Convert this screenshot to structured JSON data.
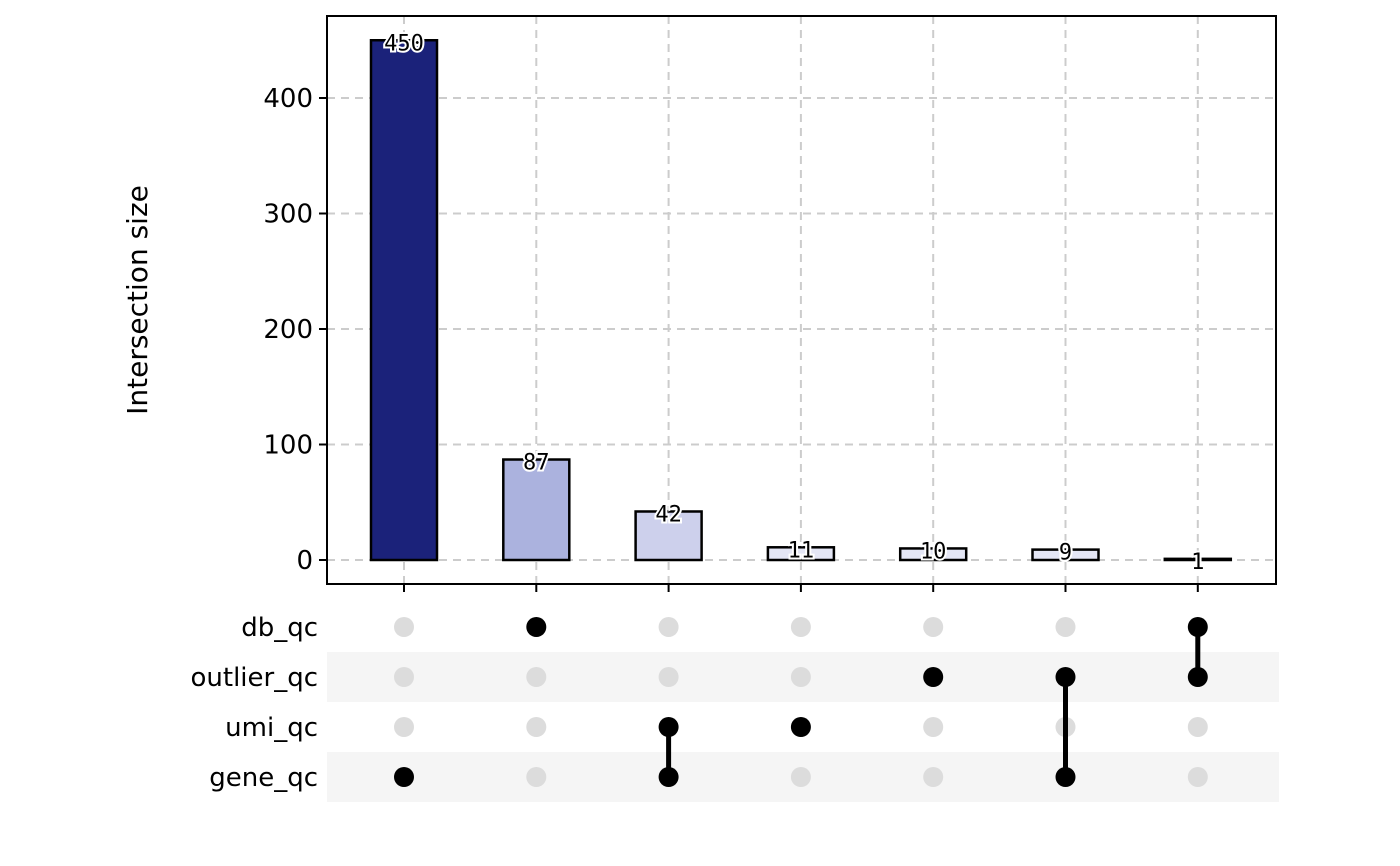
{
  "chart_data": {
    "type": "bar",
    "subtype": "upset",
    "ylabel": "Intersection size",
    "ylim": [
      0,
      470
    ],
    "yticks": [
      "0",
      "100",
      "200",
      "300",
      "400"
    ],
    "grid": true,
    "sets": [
      "db_qc",
      "outlier_qc",
      "umi_qc",
      "gene_qc"
    ],
    "intersections": [
      {
        "members": [
          "gene_qc"
        ],
        "value": 450,
        "label": "450",
        "color": "#1b227a"
      },
      {
        "members": [
          "db_qc"
        ],
        "value": 87,
        "label": "87",
        "color": "#abb2de"
      },
      {
        "members": [
          "umi_qc",
          "gene_qc"
        ],
        "value": 42,
        "label": "42",
        "color": "#cdd0ec"
      },
      {
        "members": [
          "umi_qc"
        ],
        "value": 11,
        "label": "11",
        "color": "#e4e6f5"
      },
      {
        "members": [
          "outlier_qc"
        ],
        "value": 10,
        "label": "10",
        "color": "#e4e6f5"
      },
      {
        "members": [
          "outlier_qc",
          "gene_qc"
        ],
        "value": 9,
        "label": "9",
        "color": "#e4e6f5"
      },
      {
        "members": [
          "db_qc",
          "outlier_qc"
        ],
        "value": 1,
        "label": "1",
        "color": "#e4e6f5"
      }
    ],
    "colors": {
      "active_dot": "#000000",
      "inactive_dot": "#dcdcdc",
      "stripe": "#f5f5f5",
      "grid": "#cccccc"
    }
  }
}
